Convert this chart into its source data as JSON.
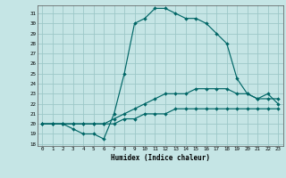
{
  "xlabel": "Humidex (Indice chaleur)",
  "bg_color": "#c5e5e5",
  "grid_color": "#9dc8c8",
  "line_color": "#006666",
  "xlim": [
    -0.5,
    23.5
  ],
  "ylim": [
    17.8,
    31.8
  ],
  "yticks": [
    18,
    19,
    20,
    21,
    22,
    23,
    24,
    25,
    26,
    27,
    28,
    29,
    30,
    31
  ],
  "xticks": [
    0,
    1,
    2,
    3,
    4,
    5,
    6,
    7,
    8,
    9,
    10,
    11,
    12,
    13,
    14,
    15,
    16,
    17,
    18,
    19,
    20,
    21,
    22,
    23
  ],
  "curve1_x": [
    0,
    1,
    2,
    3,
    4,
    5,
    6,
    7,
    8,
    9,
    10,
    11,
    12,
    13,
    14,
    15,
    16,
    17,
    18,
    19,
    20,
    21,
    22,
    23
  ],
  "curve1_y": [
    20.0,
    20.0,
    20.0,
    19.5,
    19.0,
    19.0,
    18.5,
    21.0,
    25.0,
    30.0,
    30.5,
    31.5,
    31.5,
    31.0,
    30.5,
    30.5,
    30.0,
    29.0,
    28.0,
    24.5,
    23.0,
    22.5,
    23.0,
    22.0
  ],
  "curve2_x": [
    0,
    1,
    2,
    3,
    4,
    5,
    6,
    7,
    8,
    9,
    10,
    11,
    12,
    13,
    14,
    15,
    16,
    17,
    18,
    19,
    20,
    21,
    22,
    23
  ],
  "curve2_y": [
    20.0,
    20.0,
    20.0,
    20.0,
    20.0,
    20.0,
    20.0,
    20.5,
    21.0,
    21.5,
    22.0,
    22.5,
    23.0,
    23.0,
    23.0,
    23.5,
    23.5,
    23.5,
    23.5,
    23.0,
    23.0,
    22.5,
    22.5,
    22.5
  ],
  "curve3_x": [
    0,
    1,
    2,
    3,
    4,
    5,
    6,
    7,
    8,
    9,
    10,
    11,
    12,
    13,
    14,
    15,
    16,
    17,
    18,
    19,
    20,
    21,
    22,
    23
  ],
  "curve3_y": [
    20.0,
    20.0,
    20.0,
    20.0,
    20.0,
    20.0,
    20.0,
    20.0,
    20.5,
    20.5,
    21.0,
    21.0,
    21.0,
    21.5,
    21.5,
    21.5,
    21.5,
    21.5,
    21.5,
    21.5,
    21.5,
    21.5,
    21.5,
    21.5
  ]
}
